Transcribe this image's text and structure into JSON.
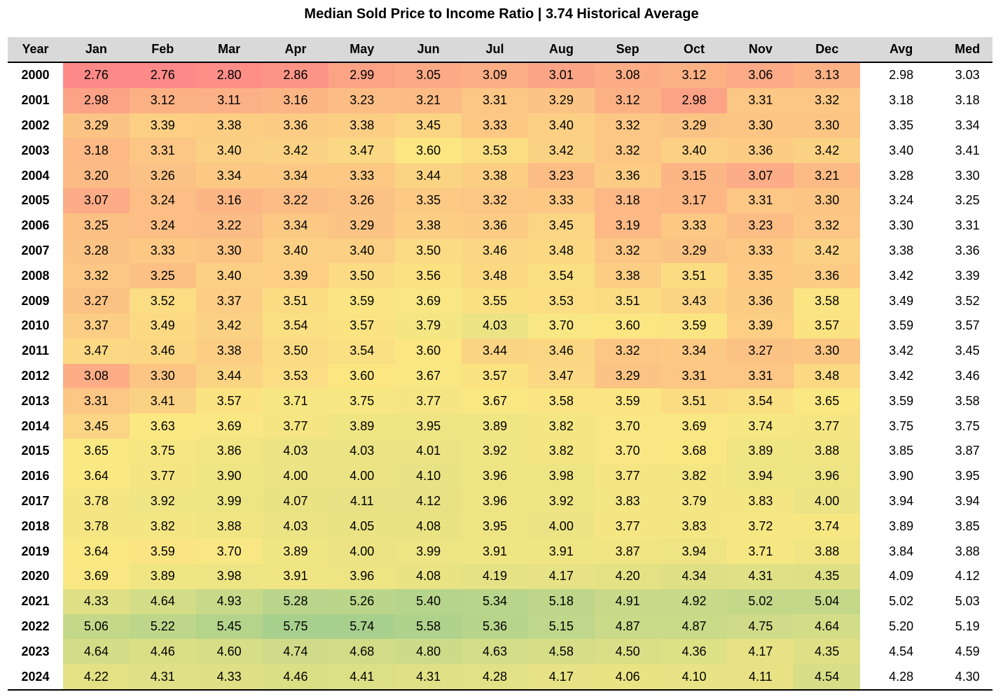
{
  "title": "Median Sold Price to Income Ratio | 3.74 Historical Average",
  "chart_data": {
    "type": "heatmap",
    "title": "Median Sold Price to Income Ratio | 3.74 Historical Average",
    "historical_average": 3.74,
    "columns": [
      "Year",
      "Jan",
      "Feb",
      "Mar",
      "Apr",
      "May",
      "Jun",
      "Jul",
      "Aug",
      "Sep",
      "Oct",
      "Nov",
      "Dec",
      "Avg",
      "Med"
    ],
    "rows": [
      {
        "year": "2000",
        "values": [
          "2.76",
          "2.76",
          "2.80",
          "2.86",
          "2.99",
          "3.05",
          "3.09",
          "3.01",
          "3.08",
          "3.12",
          "3.06",
          "3.13"
        ],
        "avg": "2.98",
        "med": "3.03"
      },
      {
        "year": "2001",
        "values": [
          "2.98",
          "3.12",
          "3.11",
          "3.16",
          "3.23",
          "3.21",
          "3.31",
          "3.29",
          "3.12",
          "2.98",
          "3.31",
          "3.32"
        ],
        "avg": "3.18",
        "med": "3.18"
      },
      {
        "year": "2002",
        "values": [
          "3.29",
          "3.39",
          "3.38",
          "3.36",
          "3.38",
          "3.45",
          "3.33",
          "3.40",
          "3.32",
          "3.29",
          "3.30",
          "3.30"
        ],
        "avg": "3.35",
        "med": "3.34"
      },
      {
        "year": "2003",
        "values": [
          "3.18",
          "3.31",
          "3.40",
          "3.42",
          "3.47",
          "3.60",
          "3.53",
          "3.42",
          "3.32",
          "3.40",
          "3.36",
          "3.42"
        ],
        "avg": "3.40",
        "med": "3.41"
      },
      {
        "year": "2004",
        "values": [
          "3.20",
          "3.26",
          "3.34",
          "3.34",
          "3.33",
          "3.44",
          "3.38",
          "3.23",
          "3.36",
          "3.15",
          "3.07",
          "3.21"
        ],
        "avg": "3.28",
        "med": "3.30"
      },
      {
        "year": "2005",
        "values": [
          "3.07",
          "3.24",
          "3.16",
          "3.22",
          "3.26",
          "3.35",
          "3.32",
          "3.33",
          "3.18",
          "3.17",
          "3.31",
          "3.30"
        ],
        "avg": "3.24",
        "med": "3.25"
      },
      {
        "year": "2006",
        "values": [
          "3.25",
          "3.24",
          "3.22",
          "3.34",
          "3.29",
          "3.38",
          "3.36",
          "3.45",
          "3.19",
          "3.33",
          "3.23",
          "3.32"
        ],
        "avg": "3.30",
        "med": "3.31"
      },
      {
        "year": "2007",
        "values": [
          "3.28",
          "3.33",
          "3.30",
          "3.40",
          "3.40",
          "3.50",
          "3.46",
          "3.48",
          "3.32",
          "3.29",
          "3.33",
          "3.42"
        ],
        "avg": "3.38",
        "med": "3.36"
      },
      {
        "year": "2008",
        "values": [
          "3.32",
          "3.25",
          "3.40",
          "3.39",
          "3.50",
          "3.56",
          "3.48",
          "3.54",
          "3.38",
          "3.51",
          "3.35",
          "3.36"
        ],
        "avg": "3.42",
        "med": "3.39"
      },
      {
        "year": "2009",
        "values": [
          "3.27",
          "3.52",
          "3.37",
          "3.51",
          "3.59",
          "3.69",
          "3.55",
          "3.53",
          "3.51",
          "3.43",
          "3.36",
          "3.58"
        ],
        "avg": "3.49",
        "med": "3.52"
      },
      {
        "year": "2010",
        "values": [
          "3.37",
          "3.49",
          "3.42",
          "3.54",
          "3.57",
          "3.79",
          "4.03",
          "3.70",
          "3.60",
          "3.59",
          "3.39",
          "3.57"
        ],
        "avg": "3.59",
        "med": "3.57"
      },
      {
        "year": "2011",
        "values": [
          "3.47",
          "3.46",
          "3.38",
          "3.50",
          "3.54",
          "3.60",
          "3.44",
          "3.46",
          "3.32",
          "3.34",
          "3.27",
          "3.30"
        ],
        "avg": "3.42",
        "med": "3.45"
      },
      {
        "year": "2012",
        "values": [
          "3.08",
          "3.30",
          "3.44",
          "3.53",
          "3.60",
          "3.67",
          "3.57",
          "3.47",
          "3.29",
          "3.31",
          "3.31",
          "3.48"
        ],
        "avg": "3.42",
        "med": "3.46"
      },
      {
        "year": "2013",
        "values": [
          "3.31",
          "3.41",
          "3.57",
          "3.71",
          "3.75",
          "3.77",
          "3.67",
          "3.58",
          "3.59",
          "3.51",
          "3.54",
          "3.65"
        ],
        "avg": "3.59",
        "med": "3.58"
      },
      {
        "year": "2014",
        "values": [
          "3.45",
          "3.63",
          "3.69",
          "3.77",
          "3.89",
          "3.95",
          "3.89",
          "3.82",
          "3.70",
          "3.69",
          "3.74",
          "3.77"
        ],
        "avg": "3.75",
        "med": "3.75"
      },
      {
        "year": "2015",
        "values": [
          "3.65",
          "3.75",
          "3.86",
          "4.03",
          "4.03",
          "4.01",
          "3.92",
          "3.82",
          "3.70",
          "3.68",
          "3.89",
          "3.88"
        ],
        "avg": "3.85",
        "med": "3.87"
      },
      {
        "year": "2016",
        "values": [
          "3.64",
          "3.77",
          "3.90",
          "4.00",
          "4.00",
          "4.10",
          "3.96",
          "3.98",
          "3.77",
          "3.82",
          "3.94",
          "3.96"
        ],
        "avg": "3.90",
        "med": "3.95"
      },
      {
        "year": "2017",
        "values": [
          "3.78",
          "3.92",
          "3.99",
          "4.07",
          "4.11",
          "4.12",
          "3.96",
          "3.92",
          "3.83",
          "3.79",
          "3.83",
          "4.00"
        ],
        "avg": "3.94",
        "med": "3.94"
      },
      {
        "year": "2018",
        "values": [
          "3.78",
          "3.82",
          "3.88",
          "4.03",
          "4.05",
          "4.08",
          "3.95",
          "4.00",
          "3.77",
          "3.83",
          "3.72",
          "3.74"
        ],
        "avg": "3.89",
        "med": "3.85"
      },
      {
        "year": "2019",
        "values": [
          "3.64",
          "3.59",
          "3.70",
          "3.89",
          "4.00",
          "3.99",
          "3.91",
          "3.91",
          "3.87",
          "3.94",
          "3.71",
          "3.88"
        ],
        "avg": "3.84",
        "med": "3.88"
      },
      {
        "year": "2020",
        "values": [
          "3.69",
          "3.89",
          "3.98",
          "3.91",
          "3.96",
          "4.08",
          "4.19",
          "4.17",
          "4.20",
          "4.34",
          "4.31",
          "4.35"
        ],
        "avg": "4.09",
        "med": "4.12"
      },
      {
        "year": "2021",
        "values": [
          "4.33",
          "4.64",
          "4.93",
          "5.28",
          "5.26",
          "5.40",
          "5.34",
          "5.18",
          "4.91",
          "4.92",
          "5.02",
          "5.04"
        ],
        "avg": "5.02",
        "med": "5.03"
      },
      {
        "year": "2022",
        "values": [
          "5.06",
          "5.22",
          "5.45",
          "5.75",
          "5.74",
          "5.58",
          "5.36",
          "5.15",
          "4.87",
          "4.87",
          "4.75",
          "4.64"
        ],
        "avg": "5.20",
        "med": "5.19"
      },
      {
        "year": "2023",
        "values": [
          "4.64",
          "4.46",
          "4.60",
          "4.74",
          "4.68",
          "4.80",
          "4.63",
          "4.58",
          "4.50",
          "4.36",
          "4.17",
          "4.35"
        ],
        "avg": "4.54",
        "med": "4.59"
      },
      {
        "year": "2024",
        "values": [
          "4.22",
          "4.31",
          "4.33",
          "4.46",
          "4.41",
          "4.31",
          "4.28",
          "4.17",
          "4.06",
          "4.10",
          "4.11",
          "4.54"
        ],
        "avg": "4.28",
        "med": "4.30"
      }
    ],
    "color_scale": {
      "low": "#fd8a88",
      "mid": "#fbe882",
      "high": "#a8d08d",
      "mid_value": 3.62
    }
  }
}
